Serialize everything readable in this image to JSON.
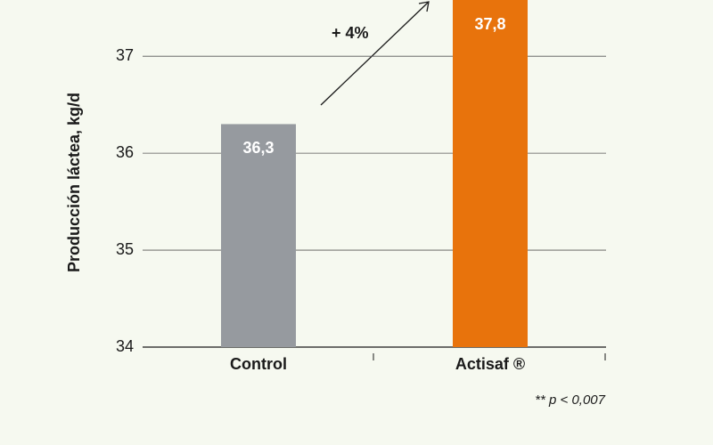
{
  "chart_data": {
    "type": "bar",
    "y_label": "Producción láctea, kg/d",
    "categories": [
      "Control",
      "Actisaf ®"
    ],
    "values": [
      36.3,
      37.8
    ],
    "value_labels": [
      "36,3",
      "37,8"
    ],
    "colors": [
      "#969a9f",
      "#e8730c"
    ],
    "ylim": [
      34,
      37.58
    ],
    "yticks": [
      34,
      35,
      36,
      37
    ],
    "grid": true,
    "annotation": "+ 4%",
    "footnote": "** p < 0,007"
  }
}
